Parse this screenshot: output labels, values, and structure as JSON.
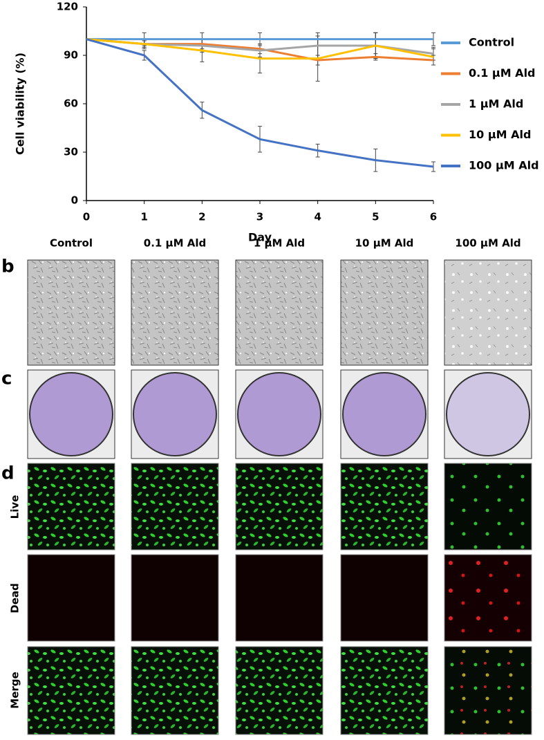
{
  "chart_data": {
    "type": "line",
    "x_label": "Day",
    "y_label": "Cell viability (%)",
    "x": [
      0,
      1,
      2,
      3,
      4,
      5,
      6
    ],
    "xlim": [
      0,
      6
    ],
    "xticks": [
      0,
      1,
      2,
      3,
      4,
      5,
      6
    ],
    "ylim": [
      0,
      120
    ],
    "yticks": [
      0,
      30,
      60,
      90,
      120
    ],
    "legend": "right",
    "series": [
      {
        "name": "Control",
        "color": "#5b9bd5",
        "values": [
          100,
          100,
          100,
          100,
          100,
          100,
          100
        ],
        "errors": [
          0,
          4,
          4,
          4,
          4,
          4,
          4
        ]
      },
      {
        "name": "0.1 μM Ald",
        "color": "#ed7d31",
        "values": [
          100,
          97,
          97,
          94,
          87,
          89,
          87
        ],
        "errors": [
          0,
          2,
          3,
          3,
          3,
          2,
          3
        ]
      },
      {
        "name": "1 μM Ald",
        "color": "#a5a5a5",
        "values": [
          100,
          97,
          96,
          93,
          96,
          96,
          91
        ],
        "errors": [
          0,
          2,
          4,
          4,
          6,
          8,
          4
        ]
      },
      {
        "name": "10 μM Ald",
        "color": "#ffc000",
        "values": [
          100,
          97,
          93,
          88,
          88,
          96,
          89
        ],
        "errors": [
          0,
          3,
          7,
          9,
          14,
          8,
          5
        ]
      },
      {
        "name": "100 μM Ald",
        "color": "#4472c4",
        "values": [
          100,
          90,
          56,
          38,
          31,
          25,
          21
        ],
        "errors": [
          0,
          3,
          5,
          8,
          4,
          7,
          3
        ]
      }
    ]
  },
  "panels": {
    "columns": [
      "Control",
      "0.1 μM Ald",
      "1 μM Ald",
      "10 μM Ald",
      "100 μM Ald"
    ],
    "letters": [
      "b",
      "c",
      "d"
    ],
    "rows": [
      "Live",
      "Dead",
      "Merge"
    ]
  }
}
